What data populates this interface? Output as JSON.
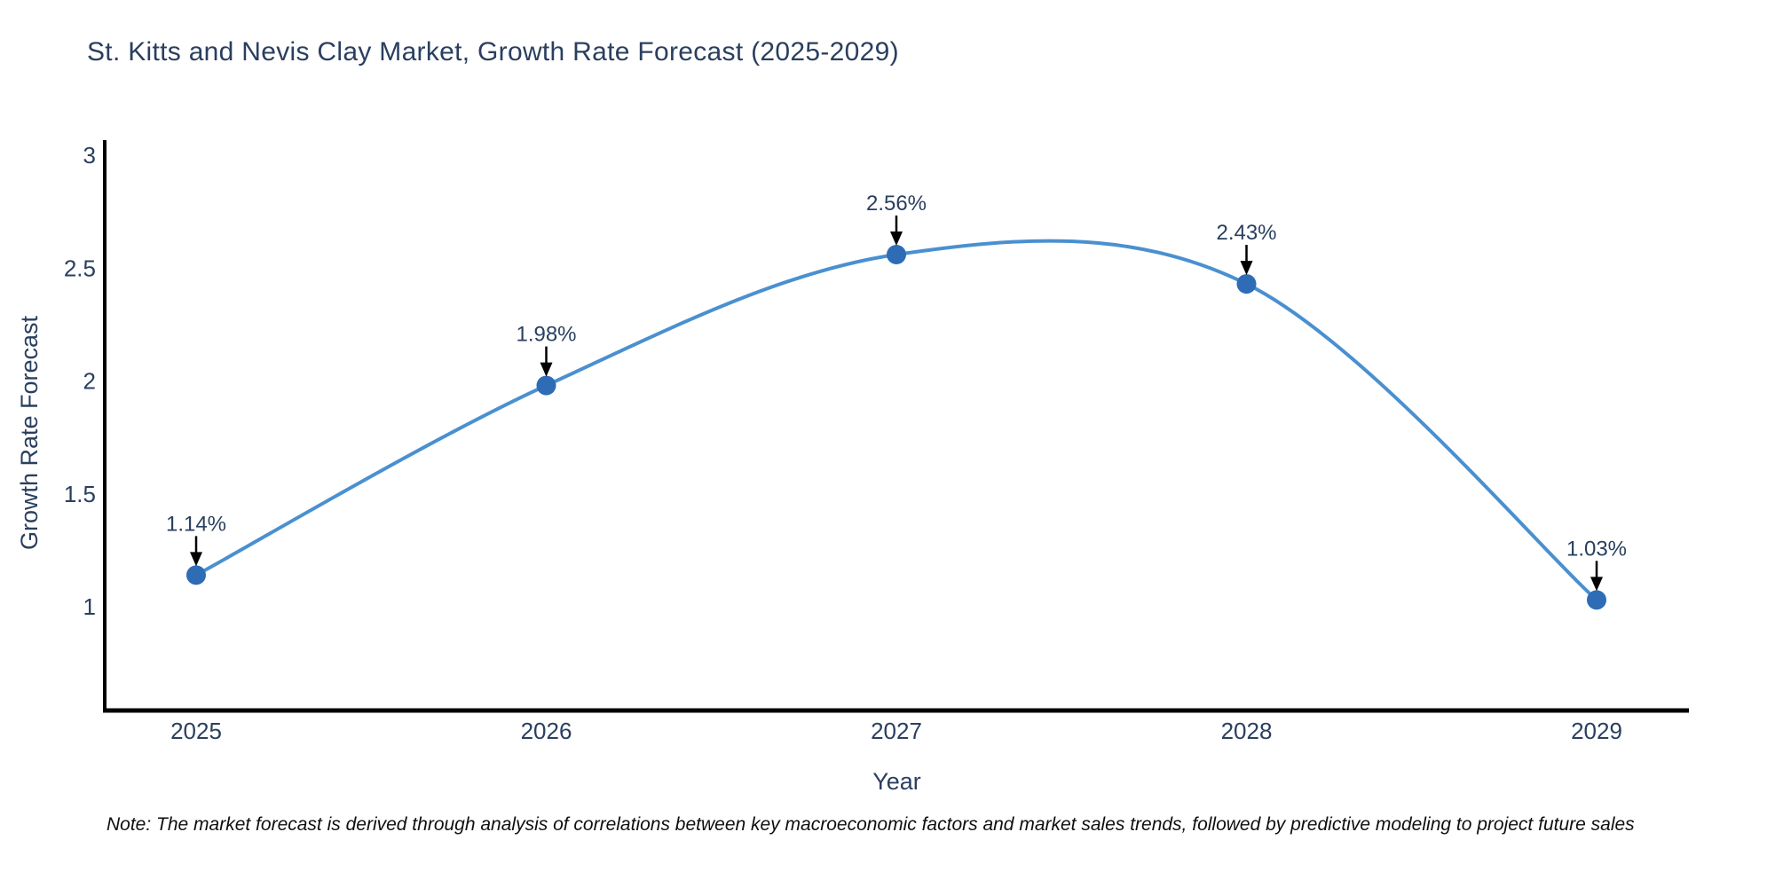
{
  "chart_data": {
    "type": "line",
    "title": "St. Kitts and Nevis Clay Market, Growth Rate Forecast (2025-2029)",
    "xlabel": "Year",
    "ylabel": "Growth Rate Forecast",
    "x": [
      2025,
      2026,
      2027,
      2028,
      2029
    ],
    "series": [
      {
        "name": "Growth Rate Forecast",
        "values": [
          1.14,
          1.98,
          2.56,
          2.43,
          1.03
        ]
      }
    ],
    "point_labels": [
      "1.14%",
      "1.98%",
      "2.56%",
      "2.43%",
      "1.03%"
    ],
    "yticks": [
      1,
      1.5,
      2,
      2.5,
      3
    ],
    "xticks": [
      "2025",
      "2026",
      "2027",
      "2028",
      "2029"
    ],
    "ylim": [
      0.54,
      3.06
    ],
    "line_shape": "spline",
    "grid": false,
    "legend": false,
    "colors": {
      "line": "#4a90d0",
      "marker": "#2e6db5",
      "axis": "#000000",
      "text": "#2a3f5f",
      "arrow": "#000000"
    }
  },
  "note": "Note: The market forecast is derived through analysis of correlations between key macroeconomic factors and market sales trends, followed by predictive modeling to project future sales"
}
